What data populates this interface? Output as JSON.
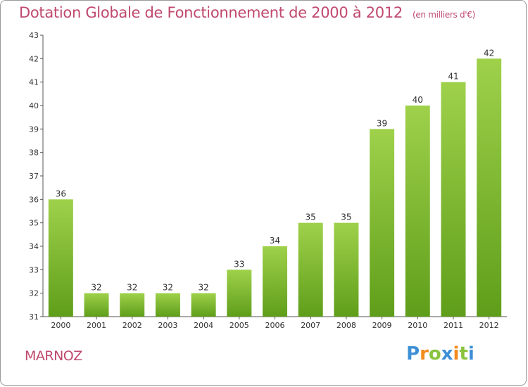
{
  "title": "Dotation Globale de Fonctionnement de 2000 à 2012",
  "subtitle": "(en milliers d'€)",
  "commune": "MARNOZ",
  "logo": {
    "text": "Proxiti",
    "letters": [
      {
        "ch": "P",
        "color": "#3d8fd6"
      },
      {
        "ch": "r",
        "color": "#f28a1e"
      },
      {
        "ch": "o",
        "color": "#8ac33d"
      },
      {
        "ch": "x",
        "color": "#3d8fd6"
      },
      {
        "ch": "i",
        "color": "#f28a1e"
      },
      {
        "ch": "t",
        "color": "#8ac33d"
      },
      {
        "ch": "i",
        "color": "#3d8fd6"
      }
    ]
  },
  "chart_data": {
    "type": "bar",
    "title": "Dotation Globale de Fonctionnement de 2000 à 2012",
    "subtitle": "(en milliers d'€)",
    "categories": [
      "2000",
      "2001",
      "2002",
      "2003",
      "2004",
      "2005",
      "2006",
      "2007",
      "2008",
      "2009",
      "2010",
      "2011",
      "2012"
    ],
    "values": [
      36,
      32,
      32,
      32,
      32,
      33,
      34,
      35,
      35,
      39,
      40,
      41,
      42
    ],
    "xlabel": "",
    "ylabel": "",
    "ylim": [
      31,
      43
    ],
    "yticks": [
      31,
      32,
      33,
      34,
      35,
      36,
      37,
      38,
      39,
      40,
      41,
      42,
      43
    ],
    "grid": false,
    "bar_color": "#7cb82f",
    "bar_color_light": "#9fd14b"
  }
}
